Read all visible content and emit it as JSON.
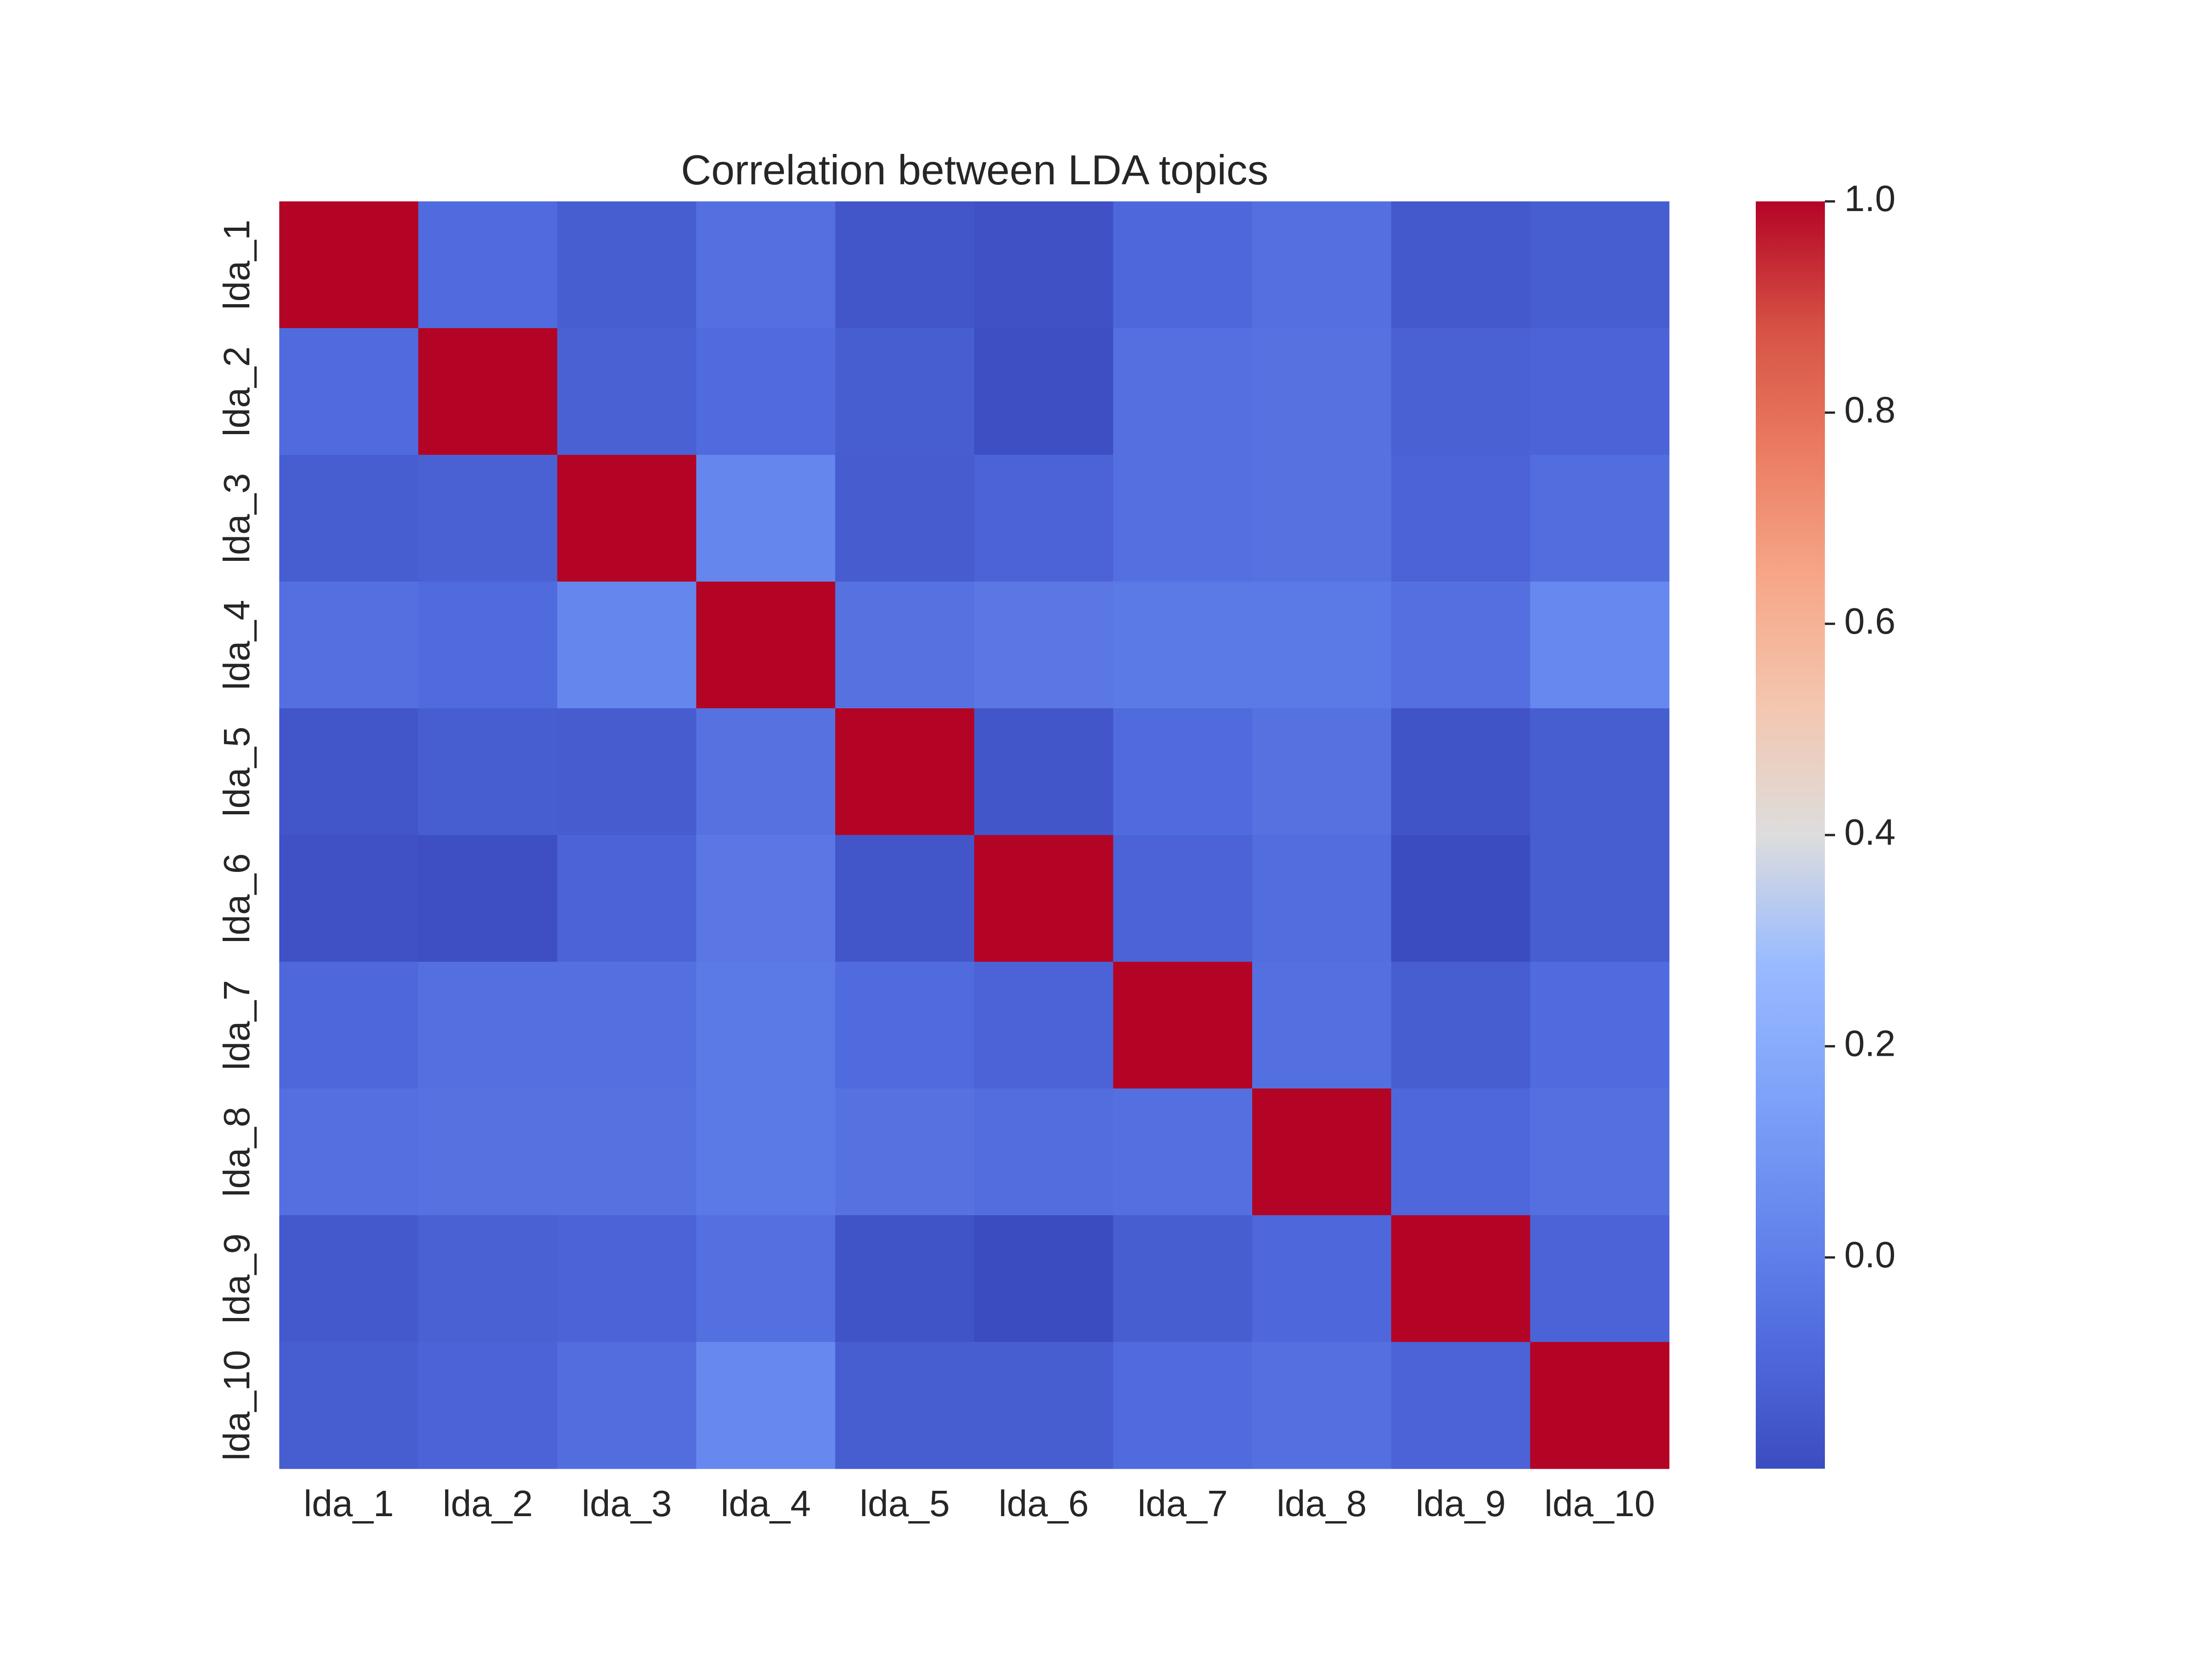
{
  "chart_data": {
    "type": "heatmap",
    "title": "Correlation between LDA topics",
    "xlabel": "",
    "ylabel": "",
    "row_labels": [
      "lda_1",
      "lda_2",
      "lda_3",
      "lda_4",
      "lda_5",
      "lda_6",
      "lda_7",
      "lda_8",
      "lda_9",
      "lda_10"
    ],
    "col_labels": [
      "lda_1",
      "lda_2",
      "lda_3",
      "lda_4",
      "lda_5",
      "lda_6",
      "lda_7",
      "lda_8",
      "lda_9",
      "lda_10"
    ],
    "values": [
      [
        1.0,
        -0.08,
        -0.13,
        -0.06,
        -0.16,
        -0.18,
        -0.09,
        -0.06,
        -0.15,
        -0.13
      ],
      [
        -0.08,
        1.0,
        -0.12,
        -0.08,
        -0.13,
        -0.19,
        -0.06,
        -0.05,
        -0.12,
        -0.11
      ],
      [
        -0.13,
        -0.12,
        1.0,
        0.03,
        -0.14,
        -0.11,
        -0.06,
        -0.05,
        -0.11,
        -0.07
      ],
      [
        -0.06,
        -0.08,
        0.03,
        1.0,
        -0.05,
        -0.03,
        -0.02,
        -0.02,
        -0.06,
        0.04
      ],
      [
        -0.16,
        -0.13,
        -0.14,
        -0.05,
        1.0,
        -0.16,
        -0.08,
        -0.05,
        -0.17,
        -0.13
      ],
      [
        -0.18,
        -0.19,
        -0.11,
        -0.03,
        -0.16,
        1.0,
        -0.11,
        -0.07,
        -0.2,
        -0.13
      ],
      [
        -0.09,
        -0.06,
        -0.06,
        -0.02,
        -0.08,
        -0.11,
        1.0,
        -0.06,
        -0.13,
        -0.08
      ],
      [
        -0.06,
        -0.05,
        -0.05,
        -0.02,
        -0.05,
        -0.07,
        -0.06,
        1.0,
        -0.09,
        -0.06
      ],
      [
        -0.15,
        -0.12,
        -0.11,
        -0.06,
        -0.17,
        -0.2,
        -0.13,
        -0.09,
        1.0,
        -0.11
      ],
      [
        -0.13,
        -0.11,
        -0.07,
        0.04,
        -0.13,
        -0.13,
        -0.08,
        -0.06,
        -0.11,
        1.0
      ]
    ],
    "colormap": "coolwarm",
    "vmin": -0.2,
    "vmax": 1.0,
    "colorbar": {
      "ticks": [
        0.0,
        0.2,
        0.4,
        0.6,
        0.8,
        1.0
      ],
      "tick_labels": [
        "0.0",
        "0.2",
        "0.4",
        "0.6",
        "0.8",
        "1.0"
      ]
    },
    "grid": false,
    "legend": "colorbar-right"
  }
}
